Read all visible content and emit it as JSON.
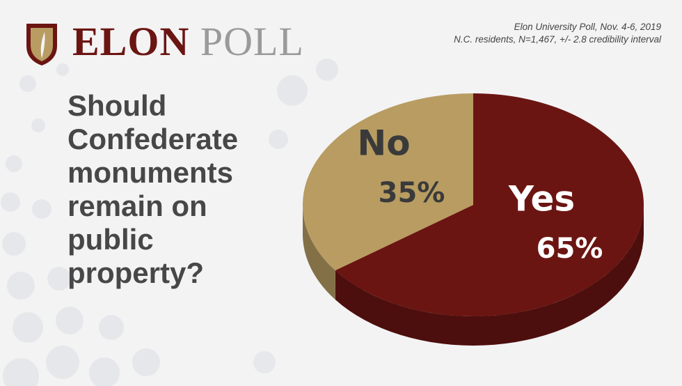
{
  "chart_data": {
    "type": "pie",
    "brand": {
      "first": "ELON",
      "second": "POLL"
    },
    "source": [
      "Elon University Poll, Nov. 4-6, 2019",
      "N.C. residents, N=1,467, +/- 2.8 credibility interval"
    ],
    "title": "Should Confederate monuments remain on public property?",
    "categories": [
      "Yes",
      "No"
    ],
    "values": [
      65,
      35
    ],
    "value_labels": [
      "65%",
      "35%"
    ],
    "colors": [
      "#6b1512",
      "#b89c62"
    ]
  }
}
